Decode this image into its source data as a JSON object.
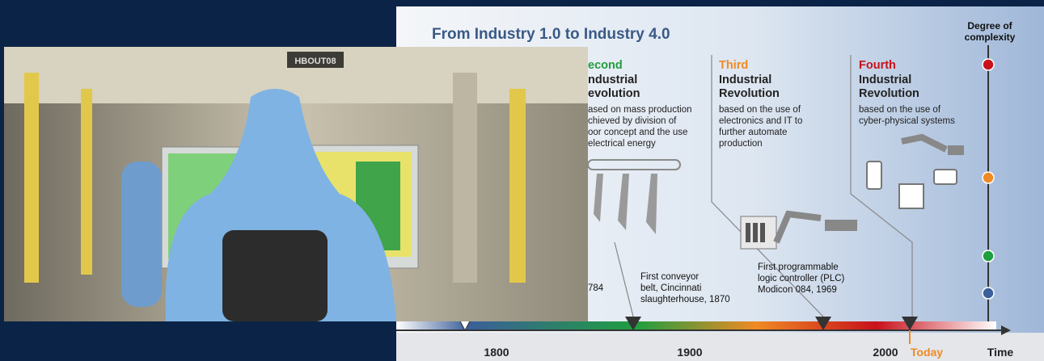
{
  "photo": {
    "sign": "HBOUT08"
  },
  "infographic": {
    "title": "From Industry 1.0 to Industry 4.0",
    "complexity_label": [
      "Degree of",
      "complexity"
    ],
    "revolutions": [
      {
        "heading": [
          "econd",
          "ndustrial",
          "evolution"
        ],
        "description": [
          "ased on mass production",
          "chieved by division of",
          "oor concept and the use",
          "electrical energy"
        ]
      },
      {
        "heading": [
          "Third",
          "Industrial",
          "Revolution"
        ],
        "description": [
          "based on the use of",
          "electronics and IT to",
          "further automate",
          "production"
        ]
      },
      {
        "heading": [
          "Fourth",
          "Industrial",
          "Revolution"
        ],
        "description": [
          "based on the use of",
          "cyber-physical systems"
        ]
      }
    ],
    "events": [
      {
        "lines": [
          "784"
        ]
      },
      {
        "lines": [
          "First conveyor",
          "belt, Cincinnati",
          "slaughterhouse, 1870"
        ]
      },
      {
        "lines": [
          "First programmable",
          "logic controller (PLC)",
          "Modicon 084, 1969"
        ]
      }
    ],
    "timeline": {
      "labels": [
        "1800",
        "1900",
        "2000"
      ],
      "today": "Today",
      "axis": "Time"
    }
  }
}
